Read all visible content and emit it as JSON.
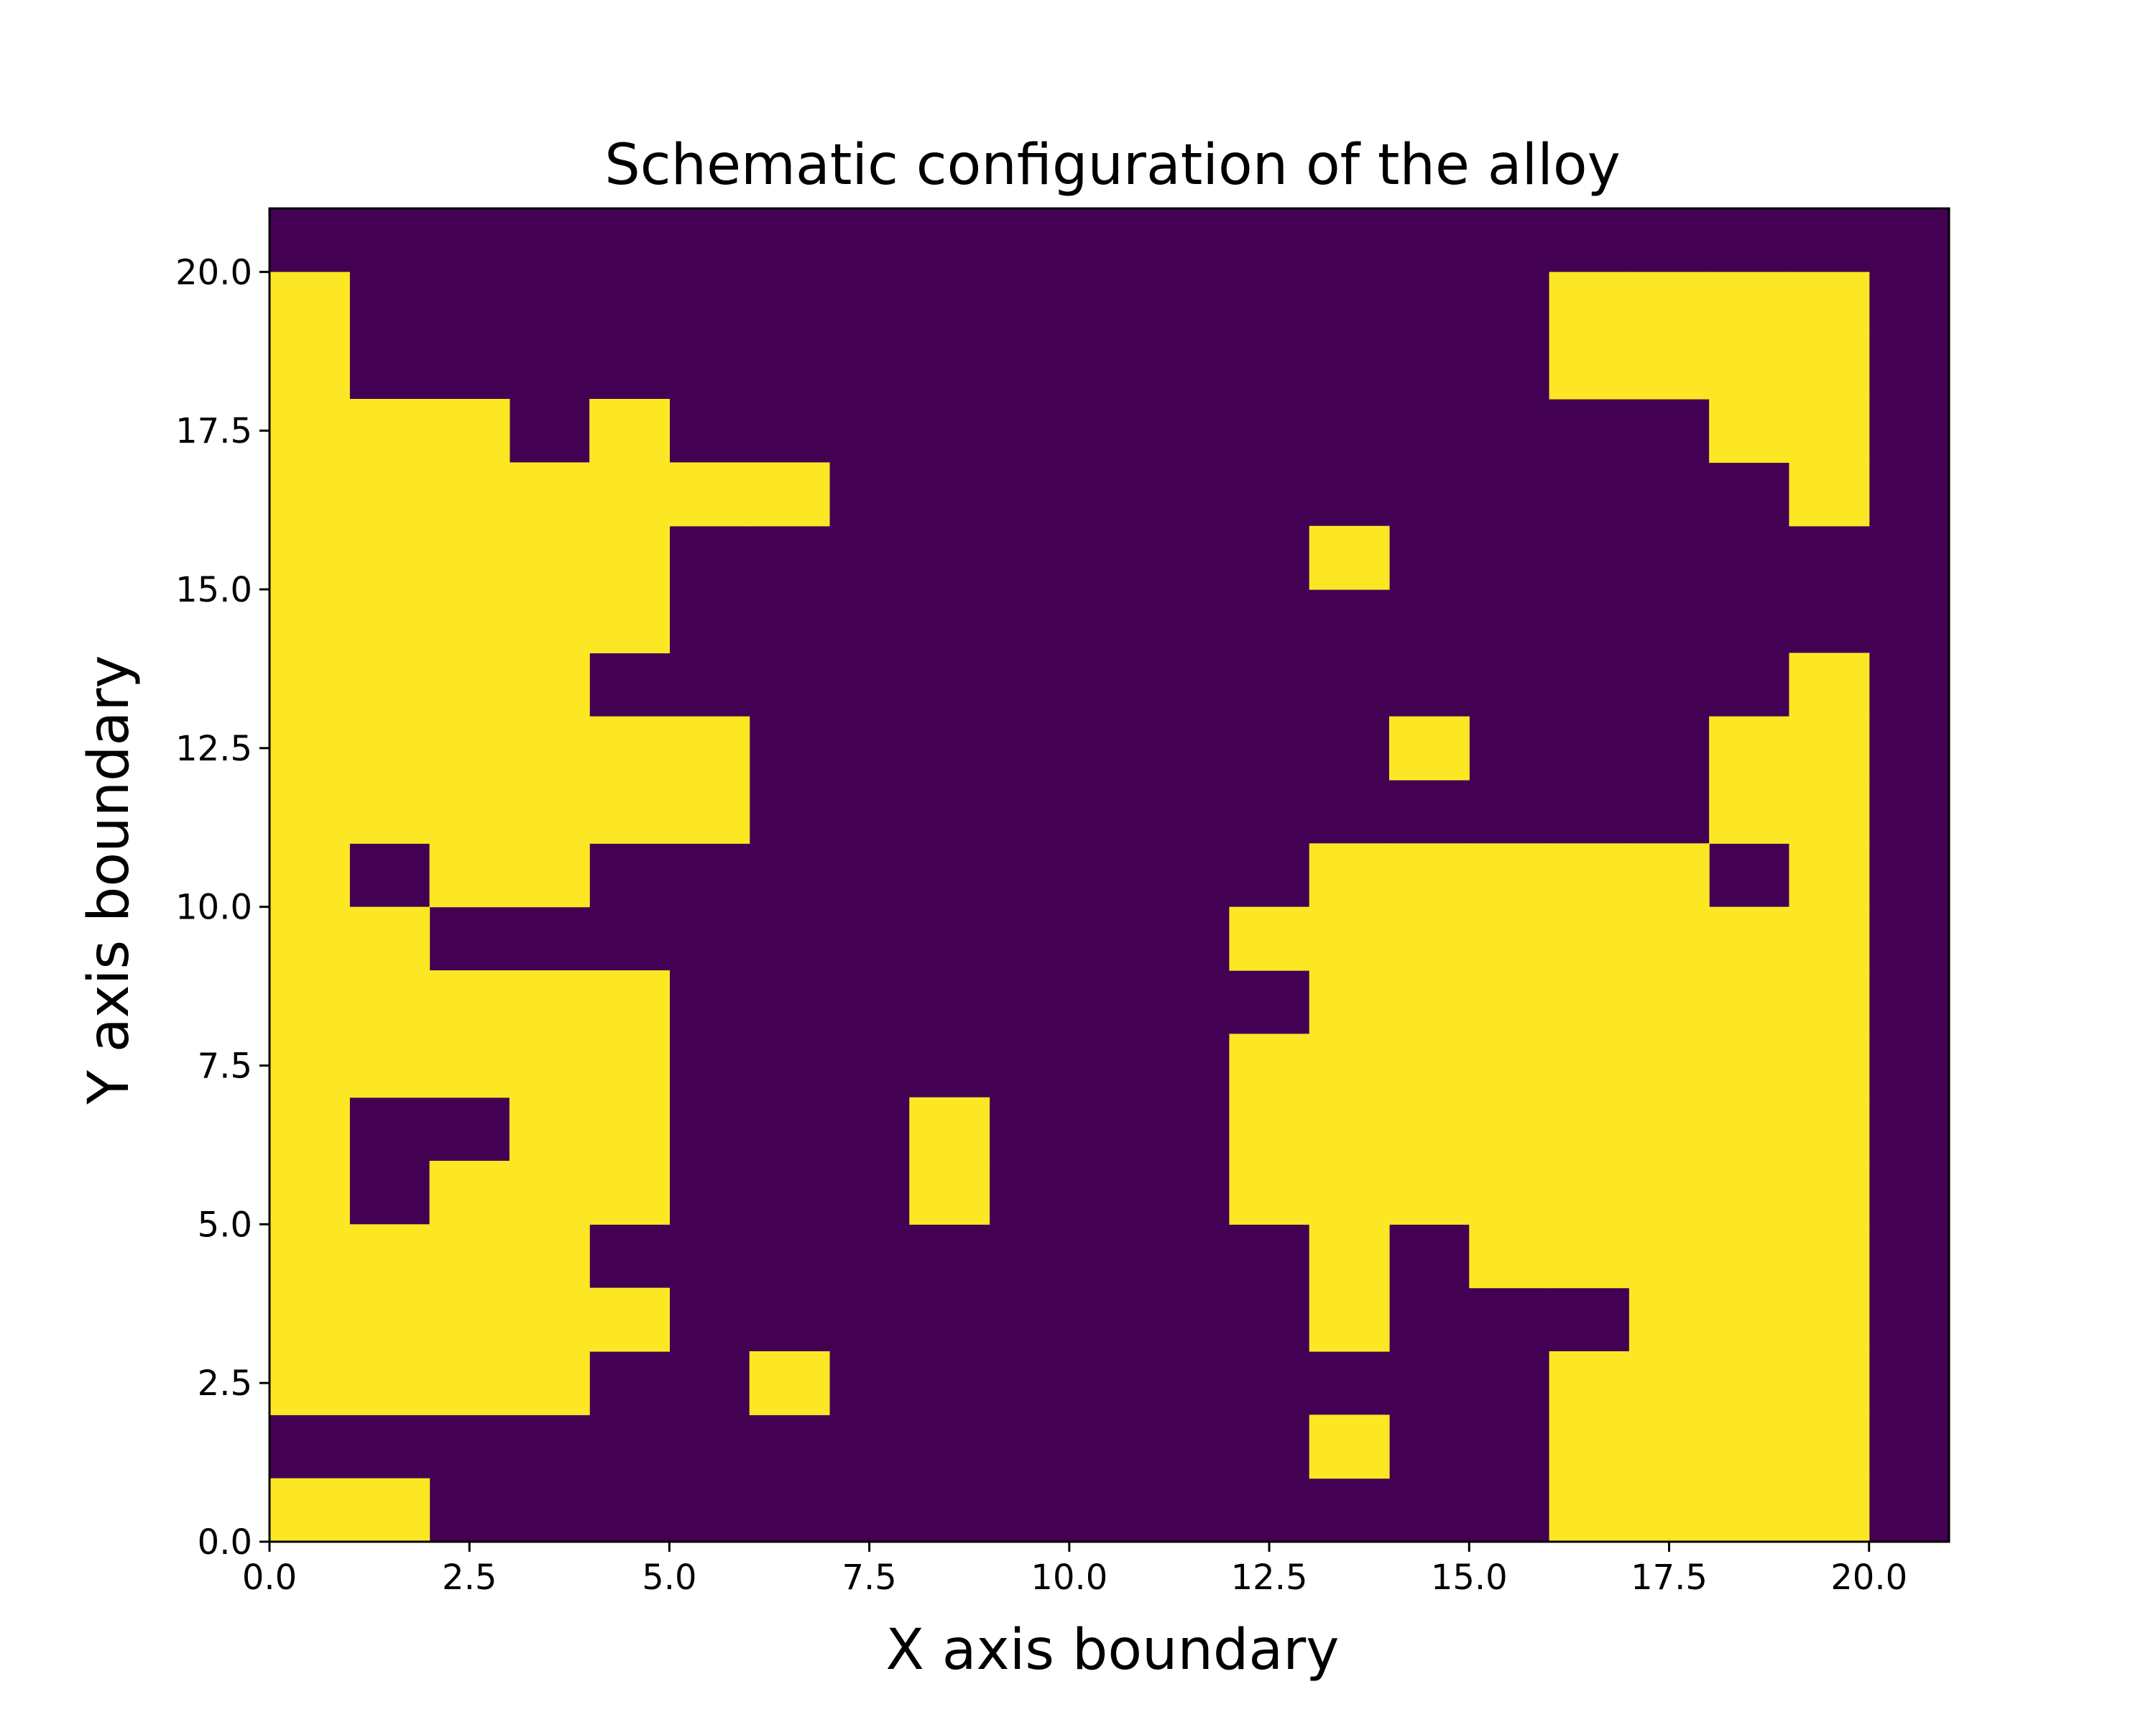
{
  "chart_data": {
    "type": "heatmap",
    "title": "Schematic configuration of the alloy",
    "xlabel": "X axis boundary",
    "ylabel": "Y axis boundary",
    "xlim": [
      0,
      21
    ],
    "ylim": [
      0,
      21
    ],
    "x_ticks": [
      "0.0",
      "2.5",
      "5.0",
      "7.5",
      "10.0",
      "12.5",
      "15.0",
      "17.5",
      "20.0"
    ],
    "y_ticks": [
      "0.0",
      "2.5",
      "5.0",
      "7.5",
      "10.0",
      "12.5",
      "15.0",
      "17.5",
      "20.0"
    ],
    "grid": false,
    "colors": {
      "0": "#440154",
      "1": "#fde725"
    },
    "cell_size": 1,
    "rows_bottom_to_top": [
      "110000000000000011110",
      "000000000000010011110",
      "111100100000000011110",
      "111110000000010001110",
      "111100000000010111110",
      "101110001000111111110",
      "100110001000111111110",
      "111110000000111111110",
      "111110000000011111110",
      "110000000000111111110",
      "101100000000011111010",
      "111111000000000000110",
      "111111000000001000110",
      "111100000000000000010",
      "111110000000000000000",
      "111110000000010000000",
      "111111100000000000010",
      "111010000000000000110",
      "100000000000000011110",
      "100000000000000011110",
      "000000000000000000000"
    ]
  }
}
